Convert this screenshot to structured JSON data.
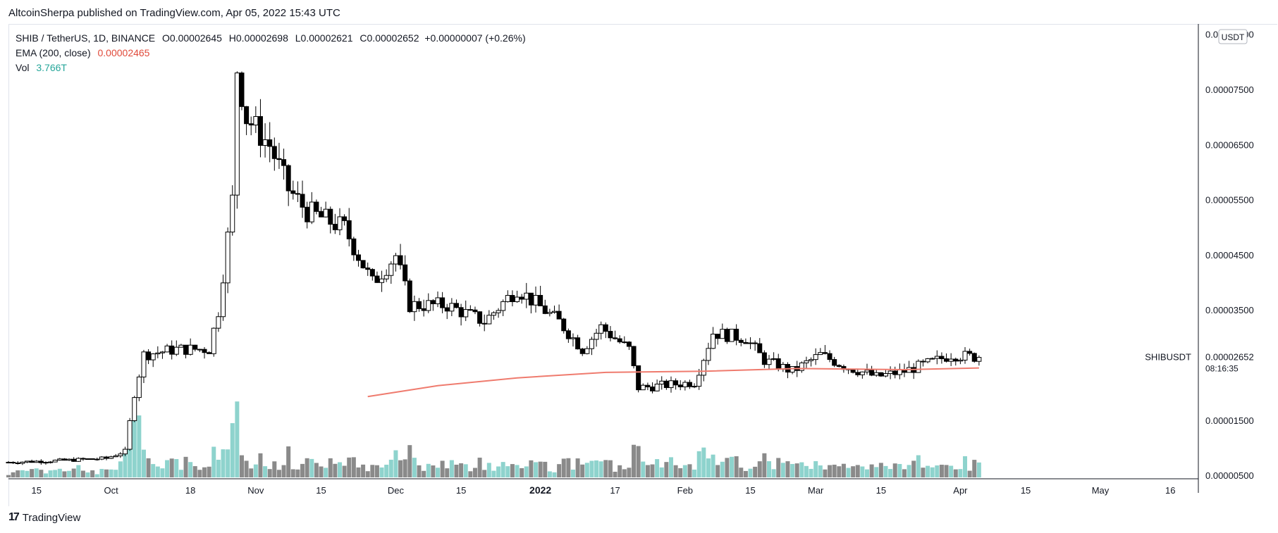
{
  "header": {
    "published_by": "AltcoinSherpa published on TradingView.com, Apr 05, 2022 15:43 UTC"
  },
  "legend": {
    "symbol": "SHIB / TetherUS, 1D, BINANCE",
    "ohlc": {
      "open": "O0.00002645",
      "high": "H0.00002698",
      "low": "L0.00002621",
      "close": "C0.00002652"
    },
    "change": "+0.00000007 (+0.26%)",
    "ema_label": "EMA (200, close)",
    "ema_value": "0.00002465",
    "vol_label": "Vol",
    "vol_value": "3.766T"
  },
  "price_axis": {
    "currency_badge": "USDT",
    "symbol_tag": "SHIBUSDT",
    "last_price": "0.00002652",
    "countdown": "08:16:35"
  },
  "footer": {
    "brand": "TradingView"
  },
  "colors": {
    "up_fill": "#ffffff",
    "down_fill": "#000000",
    "candle_stroke": "#000000",
    "vol_up": "#8ed3cd",
    "vol_down": "#8a8a8a",
    "ema": "#ef7b6e",
    "grid_line": "#e0e3eb"
  },
  "chart_data": {
    "type": "candlestick",
    "symbol": "SHIB/USDT",
    "interval": "1D",
    "x_ticks": [
      "15",
      "Oct",
      "18",
      "Nov",
      "15",
      "Dec",
      "15",
      "2022",
      "17",
      "Feb",
      "15",
      "Mar",
      "15",
      "Apr",
      "15",
      "May",
      "16"
    ],
    "x_tick_dates": [
      "2021-09-15",
      "2021-10-01",
      "2021-10-18",
      "2021-11-01",
      "2021-11-15",
      "2021-12-01",
      "2021-12-15",
      "2022-01-01",
      "2022-01-17",
      "2022-02-01",
      "2022-02-15",
      "2022-03-01",
      "2022-03-15",
      "2022-04-01",
      "2022-04-15",
      "2022-05-01",
      "2022-05-16"
    ],
    "y_ticks": [
      "0.00008500",
      "0.00007500",
      "0.00006500",
      "0.00005500",
      "0.00004500",
      "0.00003500",
      "0.00001500",
      "0.00000500"
    ],
    "y_tick_values": [
      8.5e-05,
      7.5e-05,
      6.5e-05,
      5.5e-05,
      4.5e-05,
      3.5e-05,
      1.5e-05,
      5e-06
    ],
    "ylim": [
      4.5e-06,
      8.7e-05
    ],
    "xlim": [
      "2021-09-09",
      "2022-05-22"
    ],
    "price_anchors": [
      {
        "date": "2021-09-09",
        "close": 7.5e-06
      },
      {
        "date": "2021-09-20",
        "close": 7.8e-06
      },
      {
        "date": "2021-09-30",
        "close": 8.2e-06
      },
      {
        "date": "2021-10-04",
        "close": 9.5e-06
      },
      {
        "date": "2021-10-06",
        "close": 2e-05
      },
      {
        "date": "2021-10-08",
        "close": 2.7e-05
      },
      {
        "date": "2021-10-15",
        "close": 2.8e-05
      },
      {
        "date": "2021-10-22",
        "close": 2.8e-05
      },
      {
        "date": "2021-10-24",
        "close": 3.5e-05
      },
      {
        "date": "2021-10-27",
        "close": 5.5e-05
      },
      {
        "date": "2021-10-28",
        "close": 7.9e-05
      },
      {
        "date": "2021-10-30",
        "close": 7e-05
      },
      {
        "date": "2021-11-04",
        "close": 6.5e-05
      },
      {
        "date": "2021-11-08",
        "close": 5.7e-05
      },
      {
        "date": "2021-11-12",
        "close": 5.3e-05
      },
      {
        "date": "2021-11-20",
        "close": 5e-05
      },
      {
        "date": "2021-11-26",
        "close": 4e-05
      },
      {
        "date": "2021-12-01",
        "close": 4.5e-05
      },
      {
        "date": "2021-12-04",
        "close": 3.6e-05
      },
      {
        "date": "2021-12-12",
        "close": 3.6e-05
      },
      {
        "date": "2021-12-20",
        "close": 3.3e-05
      },
      {
        "date": "2021-12-27",
        "close": 3.9e-05
      },
      {
        "date": "2022-01-05",
        "close": 3.3e-05
      },
      {
        "date": "2022-01-10",
        "close": 2.8e-05
      },
      {
        "date": "2022-01-14",
        "close": 3.2e-05
      },
      {
        "date": "2022-01-20",
        "close": 2.8e-05
      },
      {
        "date": "2022-01-22",
        "close": 2.1e-05
      },
      {
        "date": "2022-02-03",
        "close": 2.2e-05
      },
      {
        "date": "2022-02-07",
        "close": 3.1e-05
      },
      {
        "date": "2022-02-14",
        "close": 3e-05
      },
      {
        "date": "2022-02-18",
        "close": 2.6e-05
      },
      {
        "date": "2022-02-24",
        "close": 2.4e-05
      },
      {
        "date": "2022-03-02",
        "close": 2.7e-05
      },
      {
        "date": "2022-03-07",
        "close": 2.5e-05
      },
      {
        "date": "2022-03-14",
        "close": 2.3e-05
      },
      {
        "date": "2022-03-20",
        "close": 2.4e-05
      },
      {
        "date": "2022-03-27",
        "close": 2.6e-05
      },
      {
        "date": "2022-03-30",
        "close": 2.7e-05
      },
      {
        "date": "2022-04-05",
        "close": 2.652e-05
      }
    ],
    "ema_anchors": [
      {
        "date": "2021-11-25",
        "value": 1.94e-05
      },
      {
        "date": "2021-12-10",
        "value": 2.14e-05
      },
      {
        "date": "2021-12-27",
        "value": 2.28e-05
      },
      {
        "date": "2022-01-15",
        "value": 2.38e-05
      },
      {
        "date": "2022-02-05",
        "value": 2.4e-05
      },
      {
        "date": "2022-02-25",
        "value": 2.45e-05
      },
      {
        "date": "2022-03-20",
        "value": 2.43e-05
      },
      {
        "date": "2022-04-05",
        "value": 2.46e-05
      }
    ],
    "volume_spikes": [
      {
        "date": "2021-10-06",
        "level": 0.95
      },
      {
        "date": "2021-10-28",
        "level": 0.98
      },
      {
        "date": "2021-10-27",
        "level": 0.7
      },
      {
        "date": "2021-10-07",
        "level": 0.8
      },
      {
        "date": "2021-11-08",
        "level": 0.4
      },
      {
        "date": "2021-12-01",
        "level": 0.35
      }
    ]
  }
}
